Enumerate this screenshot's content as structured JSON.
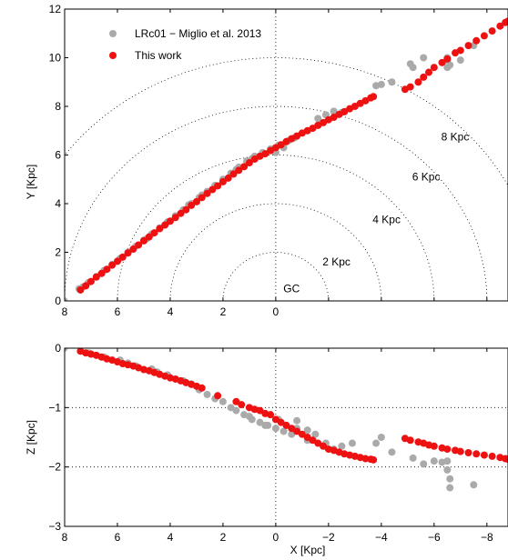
{
  "chart_data": [
    {
      "type": "scatter",
      "panel": "top",
      "xlabel": "",
      "ylabel": "Y [Kpc]",
      "xlim": [
        8,
        -8.8
      ],
      "ylim": [
        0,
        12
      ],
      "xticks": [
        8,
        6,
        4,
        2,
        0,
        -2,
        -4,
        -6,
        -8
      ],
      "xtick_labels": [
        "8",
        "6",
        "4",
        "2",
        "0",
        "",
        "",
        "",
        ""
      ],
      "yticks": [
        0,
        2,
        4,
        6,
        8,
        10,
        12
      ],
      "ytick_labels": [
        "0",
        "2",
        "4",
        "6",
        "8",
        "10",
        "12"
      ],
      "grid": "dotted",
      "circles": {
        "center": [
          0,
          0
        ],
        "radii": [
          2,
          4,
          6,
          8,
          10
        ],
        "labels": [
          {
            "text": "GC",
            "x": -0.6,
            "y": 0.35
          },
          {
            "text": "2 Kpc",
            "x": -2.3,
            "y": 1.45
          },
          {
            "text": "4 Kpc",
            "x": -4.2,
            "y": 3.2
          },
          {
            "text": "6 Kpc",
            "x": -5.7,
            "y": 4.95
          },
          {
            "text": "8 Kpc",
            "x": -6.8,
            "y": 6.6
          }
        ]
      },
      "legend": {
        "placement": "top-left",
        "entries": [
          {
            "label": "LRc01 − Miglio et al. 2013",
            "color": "#aaaaaa"
          },
          {
            "label": "This work",
            "color": "#ee1111"
          }
        ]
      },
      "series": [
        {
          "name": "LRc01 − Miglio et al. 2013",
          "color": "#aaaaaa",
          "points": [
            [
              8.02,
              0.0
            ],
            [
              7.45,
              0.5
            ],
            [
              7.3,
              0.58
            ],
            [
              7.1,
              0.75
            ],
            [
              6.8,
              1.0
            ],
            [
              6.5,
              1.25
            ],
            [
              6.2,
              1.5
            ],
            [
              5.9,
              1.75
            ],
            [
              5.6,
              2.0
            ],
            [
              5.3,
              2.25
            ],
            [
              5.0,
              2.5
            ],
            [
              4.7,
              2.75
            ],
            [
              4.4,
              3.0
            ],
            [
              4.1,
              3.25
            ],
            [
              3.8,
              3.5
            ],
            [
              3.5,
              3.75
            ],
            [
              3.2,
              4.0
            ],
            [
              2.9,
              4.25
            ],
            [
              2.6,
              4.5
            ],
            [
              2.3,
              4.75
            ],
            [
              2.0,
              5.0
            ],
            [
              1.7,
              5.25
            ],
            [
              1.4,
              5.5
            ],
            [
              1.1,
              5.75
            ],
            [
              0.8,
              5.95
            ],
            [
              0.5,
              6.1
            ],
            [
              0.2,
              6.25
            ],
            [
              -0.1,
              6.4
            ],
            [
              -0.4,
              6.55
            ],
            [
              -0.7,
              6.7
            ],
            [
              0.0,
              6.1
            ],
            [
              -0.3,
              6.3
            ],
            [
              -1.6,
              7.5
            ],
            [
              -1.9,
              7.65
            ],
            [
              -2.2,
              7.8
            ],
            [
              -2.5,
              7.75
            ],
            [
              -3.8,
              8.85
            ],
            [
              -4.0,
              8.9
            ],
            [
              -4.4,
              9.0
            ],
            [
              -5.2,
              9.6
            ],
            [
              -5.1,
              9.75
            ],
            [
              -5.6,
              10.0
            ],
            [
              -6.5,
              9.6
            ],
            [
              -6.5,
              9.9
            ],
            [
              -6.5,
              10.0
            ],
            [
              -6.6,
              9.7
            ],
            [
              -7.0,
              9.9
            ],
            [
              -7.5,
              10.5
            ],
            [
              2.8,
              4.35
            ],
            [
              1.5,
              5.4
            ],
            [
              0.9,
              5.85
            ],
            [
              -0.5,
              6.6
            ],
            [
              4.9,
              2.55
            ],
            [
              3.3,
              3.95
            ]
          ]
        },
        {
          "name": "This work",
          "color": "#ee1111",
          "points": [
            [
              7.4,
              0.45
            ],
            [
              7.2,
              0.62
            ],
            [
              7.0,
              0.8
            ],
            [
              6.8,
              0.98
            ],
            [
              6.6,
              1.13
            ],
            [
              6.4,
              1.3
            ],
            [
              6.2,
              1.47
            ],
            [
              6.0,
              1.63
            ],
            [
              5.8,
              1.8
            ],
            [
              5.6,
              1.97
            ],
            [
              5.4,
              2.13
            ],
            [
              5.2,
              2.3
            ],
            [
              5.0,
              2.47
            ],
            [
              4.8,
              2.63
            ],
            [
              4.6,
              2.8
            ],
            [
              4.4,
              2.97
            ],
            [
              4.2,
              3.12
            ],
            [
              4.0,
              3.28
            ],
            [
              3.8,
              3.43
            ],
            [
              3.6,
              3.6
            ],
            [
              3.4,
              3.75
            ],
            [
              3.2,
              3.93
            ],
            [
              3.0,
              4.08
            ],
            [
              2.8,
              4.25
            ],
            [
              2.6,
              4.42
            ],
            [
              2.4,
              4.58
            ],
            [
              2.2,
              4.73
            ],
            [
              2.0,
              4.9
            ],
            [
              1.8,
              5.05
            ],
            [
              1.6,
              5.22
            ],
            [
              1.4,
              5.37
            ],
            [
              1.2,
              5.52
            ],
            [
              1.0,
              5.68
            ],
            [
              0.8,
              5.83
            ],
            [
              0.6,
              5.95
            ],
            [
              0.4,
              6.05
            ],
            [
              0.2,
              6.18
            ],
            [
              0.0,
              6.3
            ],
            [
              -0.2,
              6.42
            ],
            [
              -0.4,
              6.55
            ],
            [
              -0.6,
              6.67
            ],
            [
              -0.8,
              6.78
            ],
            [
              -1.0,
              6.9
            ],
            [
              -1.2,
              7.0
            ],
            [
              -1.4,
              7.1
            ],
            [
              -1.6,
              7.22
            ],
            [
              -1.8,
              7.33
            ],
            [
              -2.0,
              7.45
            ],
            [
              -2.2,
              7.55
            ],
            [
              -2.4,
              7.67
            ],
            [
              -2.6,
              7.78
            ],
            [
              -2.8,
              7.9
            ],
            [
              -3.0,
              8.0
            ],
            [
              -3.2,
              8.12
            ],
            [
              -3.4,
              8.23
            ],
            [
              -3.6,
              8.35
            ],
            [
              -3.7,
              8.4
            ],
            [
              -4.9,
              8.7
            ],
            [
              -5.1,
              8.8
            ],
            [
              -5.4,
              9.0
            ],
            [
              -5.6,
              9.2
            ],
            [
              -5.8,
              9.4
            ],
            [
              -6.0,
              9.6
            ],
            [
              -6.3,
              9.8
            ],
            [
              -6.5,
              9.95
            ],
            [
              -6.8,
              10.2
            ],
            [
              -7.0,
              10.3
            ],
            [
              -7.3,
              10.5
            ],
            [
              -7.6,
              10.7
            ],
            [
              -7.9,
              10.9
            ],
            [
              -8.2,
              11.1
            ],
            [
              -8.5,
              11.3
            ],
            [
              -8.7,
              11.45
            ],
            [
              -8.8,
              11.5
            ]
          ]
        }
      ]
    },
    {
      "type": "scatter",
      "panel": "bottom",
      "xlabel": "X [Kpc]",
      "ylabel": "Z [Kpc]",
      "xlim": [
        8,
        -8.8
      ],
      "ylim": [
        -3,
        0
      ],
      "xticks": [
        8,
        6,
        4,
        2,
        0,
        -2,
        -4,
        -6,
        -8
      ],
      "xtick_labels": [
        "8",
        "6",
        "4",
        "2",
        "0",
        "−2",
        "−4",
        "−6",
        "−8"
      ],
      "yticks": [
        0,
        -1,
        -2,
        -3
      ],
      "ytick_labels": [
        "0",
        "−1",
        "−2",
        "−3"
      ],
      "grid": "dotted",
      "series": [
        {
          "name": "LRc01 − Miglio et al. 2013",
          "color": "#aaaaaa",
          "points": [
            [
              8.02,
              0.0
            ],
            [
              7.1,
              -0.08
            ],
            [
              6.5,
              -0.15
            ],
            [
              5.9,
              -0.2
            ],
            [
              5.3,
              -0.3
            ],
            [
              4.7,
              -0.35
            ],
            [
              4.1,
              -0.45
            ],
            [
              3.5,
              -0.55
            ],
            [
              2.9,
              -0.7
            ],
            [
              2.6,
              -0.78
            ],
            [
              2.3,
              -0.85
            ],
            [
              2.0,
              -0.9
            ],
            [
              1.7,
              -1.0
            ],
            [
              1.5,
              -1.05
            ],
            [
              1.2,
              -1.12
            ],
            [
              0.9,
              -1.2
            ],
            [
              0.6,
              -1.25
            ],
            [
              0.3,
              -1.3
            ],
            [
              0.0,
              -1.35
            ],
            [
              -0.3,
              -1.4
            ],
            [
              -0.6,
              -1.45
            ],
            [
              -0.8,
              -1.35
            ],
            [
              -1.2,
              -1.38
            ],
            [
              -1.5,
              -1.45
            ],
            [
              -1.9,
              -1.6
            ],
            [
              -2.2,
              -1.7
            ],
            [
              -2.5,
              -1.65
            ],
            [
              -3.8,
              -1.6
            ],
            [
              -4.0,
              -1.5
            ],
            [
              -4.4,
              -1.75
            ],
            [
              -5.2,
              -1.85
            ],
            [
              -5.6,
              -1.95
            ],
            [
              -6.3,
              -1.92
            ],
            [
              -6.5,
              -2.05
            ],
            [
              -6.6,
              -2.2
            ],
            [
              -6.6,
              -2.35
            ],
            [
              -7.5,
              -2.3
            ],
            [
              -6.5,
              -1.9
            ],
            [
              -6.0,
              -1.9
            ],
            [
              -2.9,
              -1.6
            ],
            [
              -0.8,
              -1.22
            ],
            [
              -1.2,
              -1.55
            ],
            [
              -0.1,
              -1.2
            ],
            [
              0.4,
              -1.3
            ],
            [
              1.0,
              -1.15
            ],
            [
              3.2,
              -0.6
            ],
            [
              4.5,
              -0.4
            ],
            [
              5.6,
              -0.25
            ]
          ]
        },
        {
          "name": "This work",
          "color": "#ee1111",
          "points": [
            [
              7.4,
              -0.05
            ],
            [
              7.2,
              -0.08
            ],
            [
              7.0,
              -0.1
            ],
            [
              6.8,
              -0.12
            ],
            [
              6.6,
              -0.15
            ],
            [
              6.4,
              -0.18
            ],
            [
              6.2,
              -0.2
            ],
            [
              6.0,
              -0.23
            ],
            [
              5.8,
              -0.26
            ],
            [
              5.6,
              -0.28
            ],
            [
              5.4,
              -0.3
            ],
            [
              5.2,
              -0.33
            ],
            [
              5.0,
              -0.36
            ],
            [
              4.8,
              -0.38
            ],
            [
              4.6,
              -0.41
            ],
            [
              4.4,
              -0.44
            ],
            [
              4.2,
              -0.47
            ],
            [
              4.0,
              -0.5
            ],
            [
              3.8,
              -0.52
            ],
            [
              3.6,
              -0.55
            ],
            [
              3.4,
              -0.58
            ],
            [
              3.2,
              -0.61
            ],
            [
              3.0,
              -0.64
            ],
            [
              2.8,
              -0.67
            ],
            [
              2.2,
              -0.8
            ],
            [
              1.5,
              -0.9
            ],
            [
              1.3,
              -0.95
            ],
            [
              1.0,
              -1.0
            ],
            [
              0.8,
              -1.03
            ],
            [
              0.6,
              -1.05
            ],
            [
              0.4,
              -1.1
            ],
            [
              0.2,
              -1.12
            ],
            [
              0.0,
              -1.2
            ],
            [
              -0.2,
              -1.25
            ],
            [
              -0.4,
              -1.3
            ],
            [
              -0.6,
              -1.35
            ],
            [
              -0.8,
              -1.4
            ],
            [
              -1.0,
              -1.45
            ],
            [
              -1.2,
              -1.5
            ],
            [
              -1.4,
              -1.55
            ],
            [
              -1.6,
              -1.6
            ],
            [
              -1.8,
              -1.65
            ],
            [
              -2.0,
              -1.7
            ],
            [
              -2.2,
              -1.72
            ],
            [
              -2.4,
              -1.75
            ],
            [
              -2.6,
              -1.78
            ],
            [
              -2.8,
              -1.8
            ],
            [
              -3.0,
              -1.82
            ],
            [
              -3.2,
              -1.84
            ],
            [
              -3.4,
              -1.86
            ],
            [
              -3.6,
              -1.87
            ],
            [
              -3.7,
              -1.88
            ],
            [
              -4.9,
              -1.52
            ],
            [
              -5.1,
              -1.55
            ],
            [
              -5.4,
              -1.58
            ],
            [
              -5.6,
              -1.6
            ],
            [
              -5.8,
              -1.63
            ],
            [
              -6.0,
              -1.65
            ],
            [
              -6.3,
              -1.68
            ],
            [
              -6.5,
              -1.7
            ],
            [
              -6.8,
              -1.72
            ],
            [
              -7.0,
              -1.74
            ],
            [
              -7.3,
              -1.76
            ],
            [
              -7.6,
              -1.78
            ],
            [
              -7.9,
              -1.8
            ],
            [
              -8.2,
              -1.82
            ],
            [
              -8.5,
              -1.84
            ],
            [
              -8.7,
              -1.86
            ],
            [
              -8.8,
              -1.87
            ]
          ]
        }
      ]
    }
  ]
}
